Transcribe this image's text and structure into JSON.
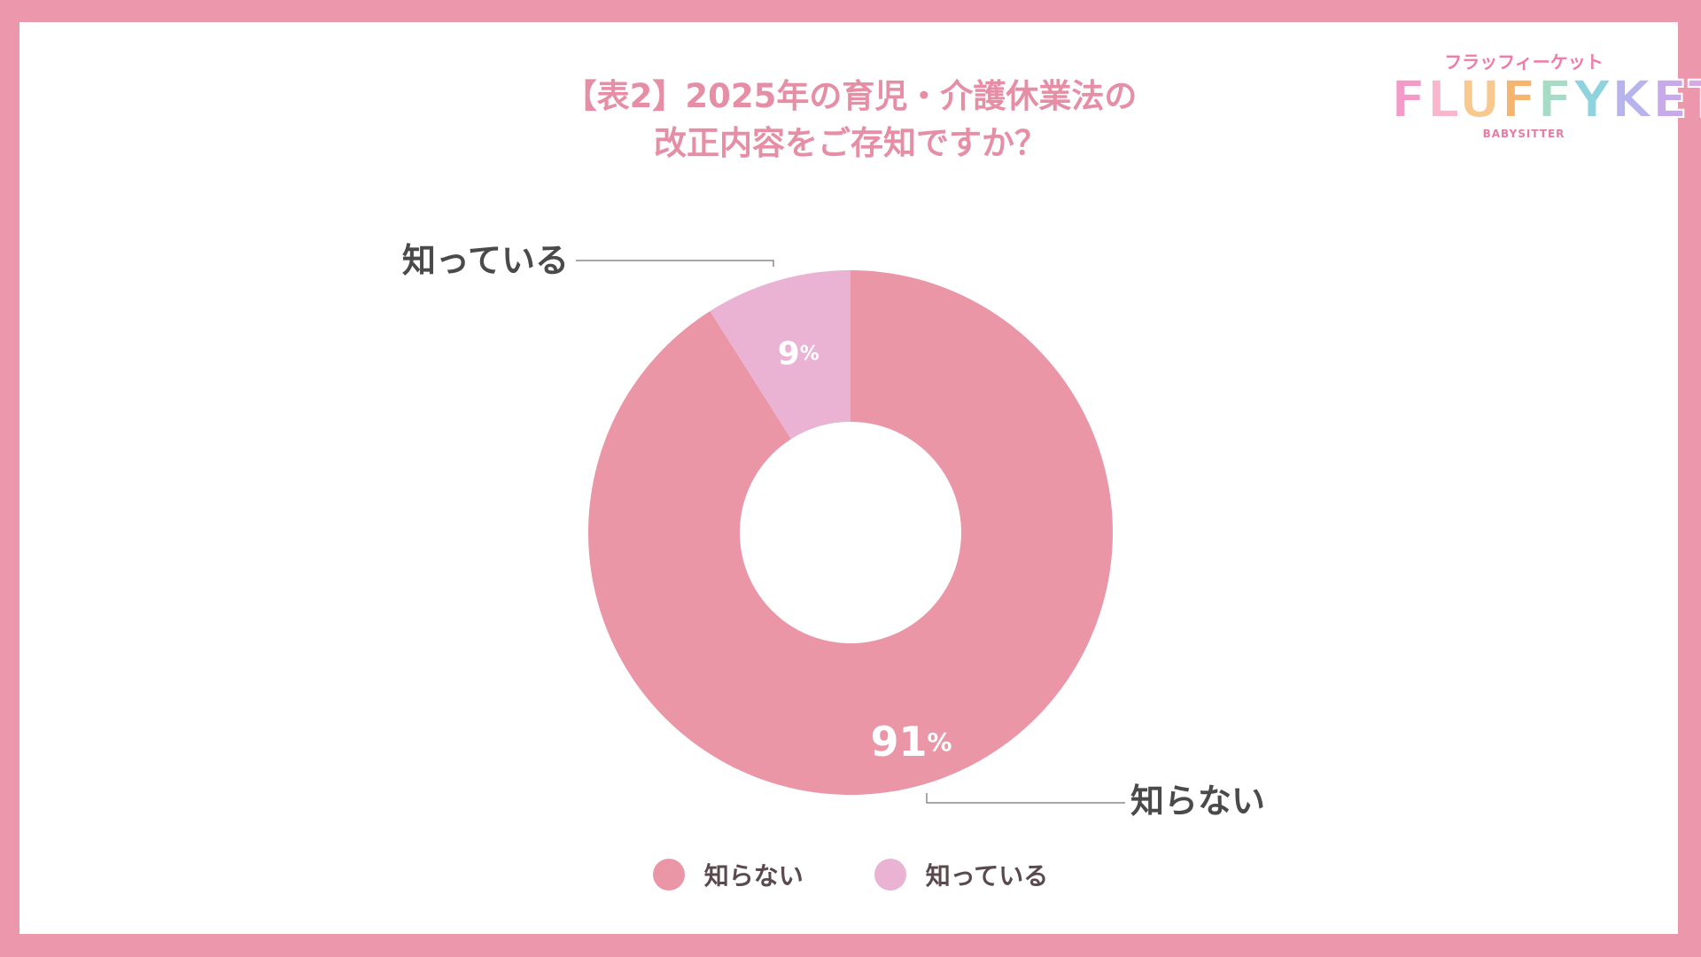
{
  "page": {
    "background": "#ec97ab",
    "title_color": "#e68ea6",
    "title_lines": [
      "【表2】2025年の育児・介護休業法の",
      "改正内容をご存知ですか？"
    ]
  },
  "logo": {
    "kana": "フラッフィーケット",
    "word": [
      "F",
      "L",
      "U",
      "F",
      "F",
      "Y",
      "K",
      "E",
      "T"
    ],
    "word_colors": [
      "#f49ac6",
      "#f9b6cc",
      "#f7c98f",
      "#f6b56e",
      "#a6dcc5",
      "#8fd3de",
      "#b7b3ec",
      "#c8a9e9",
      "#d7a7e8"
    ],
    "sub": "BABYSITTER"
  },
  "chart_data": {
    "type": "pie",
    "donut": true,
    "labels": [
      "知らない",
      "知っている"
    ],
    "values": [
      91,
      9
    ],
    "value_labels": [
      "91%",
      "9%"
    ],
    "colors": [
      "#ea96a7",
      "#eab2d3"
    ],
    "callouts": [
      "知らない",
      "知っている"
    ],
    "legend_position": "bottom",
    "start": "top",
    "direction": "clockwise"
  }
}
